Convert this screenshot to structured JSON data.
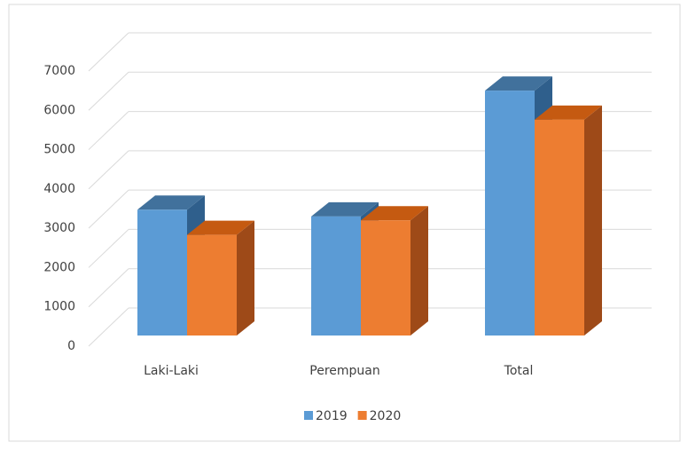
{
  "chart_data": {
    "type": "bar3d",
    "categories": [
      "Laki-Laki",
      "Perempuan",
      "Total"
    ],
    "series": [
      {
        "name": "2019",
        "color": "#5b9bd5",
        "top": "#41719c",
        "side": "#2f5f8c",
        "values": [
          3200,
          3030,
          6230
        ]
      },
      {
        "name": "2020",
        "color": "#ed7d31",
        "top": "#c55a11",
        "side": "#9e4a18",
        "values": [
          2560,
          2930,
          5490
        ]
      }
    ],
    "ylim": [
      0,
      7000
    ],
    "yticks": [
      0,
      1000,
      2000,
      3000,
      4000,
      5000,
      6000,
      7000
    ],
    "grid": true,
    "legend": "bottom"
  }
}
